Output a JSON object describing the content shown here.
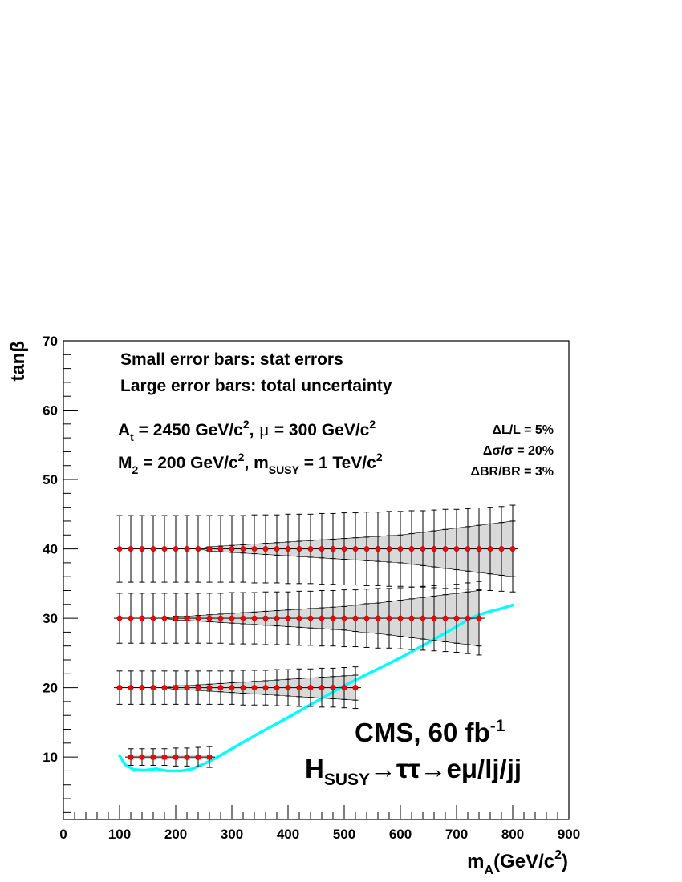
{
  "chart_data": {
    "type": "scatter",
    "xlabel": {
      "main": "m",
      "sub": "A",
      "rest": "(GeV/c",
      "sup": "2",
      "close": ")"
    },
    "ylabel": "tanβ",
    "xlim": [
      0,
      900
    ],
    "ylim": [
      1,
      70
    ],
    "x_ticks": [
      "0",
      "100",
      "200",
      "300",
      "400",
      "500",
      "600",
      "700",
      "800",
      "900"
    ],
    "y_ticks": [
      "10",
      "20",
      "30",
      "40",
      "50",
      "60",
      "70"
    ],
    "x_tick_values": [
      0,
      100,
      200,
      300,
      400,
      500,
      600,
      700,
      800,
      900
    ],
    "y_tick_values": [
      10,
      20,
      30,
      40,
      50,
      60,
      70
    ],
    "series": [
      {
        "tanb": 40,
        "x": [
          100,
          120,
          140,
          160,
          180,
          200,
          220,
          240,
          260,
          280,
          300,
          320,
          340,
          360,
          380,
          400,
          420,
          440,
          460,
          480,
          500,
          520,
          540,
          560,
          580,
          600,
          620,
          640,
          660,
          680,
          700,
          720,
          740,
          760,
          780,
          800
        ],
        "stat_lo": [
          40,
          40,
          40,
          40,
          40,
          40,
          40,
          40,
          39.7,
          39.6,
          39.5,
          39.4,
          39.3,
          39.2,
          39.1,
          39.0,
          38.9,
          38.8,
          38.7,
          38.6,
          38.5,
          38.4,
          38.3,
          38.2,
          38.1,
          38.0,
          37.8,
          37.6,
          37.4,
          37.2,
          37.0,
          36.8,
          36.6,
          36.4,
          36.2,
          36.0
        ],
        "stat_hi": [
          40,
          40,
          40,
          40,
          40,
          40,
          40,
          40,
          40.3,
          40.4,
          40.5,
          40.6,
          40.7,
          40.8,
          40.9,
          41.0,
          41.1,
          41.2,
          41.3,
          41.4,
          41.5,
          41.6,
          41.7,
          41.8,
          41.9,
          42.0,
          42.2,
          42.4,
          42.6,
          42.8,
          43.0,
          43.2,
          43.4,
          43.6,
          43.8,
          44.0
        ],
        "tot_lo": [
          35.2,
          35.2,
          35.2,
          35.2,
          35.2,
          35.2,
          35.2,
          35.2,
          35.2,
          35.2,
          35.2,
          35.2,
          35.1,
          35.1,
          35.1,
          35.0,
          35.0,
          35.0,
          34.9,
          34.9,
          34.8,
          34.8,
          34.7,
          34.7,
          34.6,
          34.6,
          34.5,
          34.5,
          34.4,
          34.3,
          34.3,
          34.2,
          34.1,
          34.0,
          33.9,
          33.8
        ],
        "tot_hi": [
          44.8,
          44.8,
          44.8,
          44.8,
          44.8,
          44.8,
          44.8,
          44.8,
          44.8,
          44.8,
          44.8,
          44.8,
          44.9,
          44.9,
          44.9,
          45.0,
          45.0,
          45.0,
          45.1,
          45.1,
          45.2,
          45.2,
          45.3,
          45.3,
          45.4,
          45.4,
          45.5,
          45.5,
          45.6,
          45.7,
          45.7,
          45.8,
          45.9,
          46.0,
          46.1,
          46.3
        ]
      },
      {
        "tanb": 30,
        "x": [
          100,
          120,
          140,
          160,
          180,
          200,
          220,
          240,
          260,
          280,
          300,
          320,
          340,
          360,
          380,
          400,
          420,
          440,
          460,
          480,
          500,
          520,
          540,
          560,
          580,
          600,
          620,
          640,
          660,
          680,
          700,
          720,
          740
        ],
        "stat_lo": [
          30,
          30,
          30,
          30,
          30,
          29.7,
          29.7,
          29.6,
          29.5,
          29.4,
          29.3,
          29.2,
          29.1,
          29.0,
          28.9,
          28.8,
          28.7,
          28.6,
          28.5,
          28.4,
          28.3,
          28.1,
          27.9,
          27.8,
          27.6,
          27.4,
          27.2,
          27.0,
          26.8,
          26.6,
          26.4,
          26.2,
          26.0
        ],
        "stat_hi": [
          30,
          30,
          30,
          30,
          30,
          30.3,
          30.3,
          30.4,
          30.5,
          30.6,
          30.7,
          30.8,
          30.9,
          31.0,
          31.1,
          31.2,
          31.3,
          31.4,
          31.5,
          31.6,
          31.7,
          31.9,
          32.1,
          32.2,
          32.4,
          32.6,
          32.8,
          33.0,
          33.2,
          33.4,
          33.6,
          33.8,
          34.0
        ],
        "tot_lo": [
          26.4,
          26.4,
          26.4,
          26.4,
          26.4,
          26.4,
          26.4,
          26.4,
          26.4,
          26.4,
          26.3,
          26.3,
          26.3,
          26.2,
          26.2,
          26.2,
          26.1,
          26.1,
          26.0,
          26.0,
          25.9,
          25.9,
          25.8,
          25.7,
          25.7,
          25.6,
          25.5,
          25.4,
          25.3,
          25.2,
          25.1,
          24.9,
          24.7
        ],
        "tot_hi": [
          33.6,
          33.6,
          33.6,
          33.6,
          33.6,
          33.6,
          33.6,
          33.6,
          33.6,
          33.6,
          33.7,
          33.7,
          33.7,
          33.8,
          33.8,
          33.8,
          33.9,
          33.9,
          34.0,
          34.0,
          34.1,
          34.1,
          34.2,
          34.3,
          34.3,
          34.4,
          34.5,
          34.6,
          34.7,
          34.8,
          34.9,
          35.1,
          35.3
        ]
      },
      {
        "tanb": 20,
        "x": [
          100,
          120,
          140,
          160,
          180,
          200,
          220,
          240,
          260,
          280,
          300,
          320,
          340,
          360,
          380,
          400,
          420,
          440,
          460,
          480,
          500,
          520
        ],
        "stat_lo": [
          20,
          20,
          20,
          20,
          20,
          19.7,
          19.7,
          19.6,
          19.5,
          19.4,
          19.3,
          19.2,
          19.1,
          19.0,
          18.9,
          18.8,
          18.7,
          18.6,
          18.5,
          18.4,
          18.3,
          18.2
        ],
        "stat_hi": [
          20,
          20,
          20,
          20,
          20,
          20.3,
          20.3,
          20.4,
          20.5,
          20.6,
          20.7,
          20.8,
          20.9,
          21.0,
          21.1,
          21.2,
          21.3,
          21.4,
          21.5,
          21.6,
          21.7,
          21.8
        ],
        "tot_lo": [
          17.6,
          17.6,
          17.6,
          17.6,
          17.6,
          17.6,
          17.6,
          17.6,
          17.6,
          17.6,
          17.6,
          17.5,
          17.5,
          17.5,
          17.4,
          17.4,
          17.3,
          17.3,
          17.2,
          17.2,
          17.1,
          17.0
        ],
        "tot_hi": [
          22.4,
          22.4,
          22.4,
          22.4,
          22.4,
          22.4,
          22.4,
          22.4,
          22.4,
          22.4,
          22.4,
          22.5,
          22.5,
          22.5,
          22.6,
          22.6,
          22.7,
          22.7,
          22.8,
          22.8,
          22.9,
          23.0
        ]
      },
      {
        "tanb": 10,
        "x": [
          120,
          140,
          160,
          180,
          200,
          220,
          240,
          260
        ],
        "stat_lo": [
          9.7,
          9.7,
          9.7,
          9.7,
          9.7,
          9.7,
          9.7,
          9.7
        ],
        "stat_hi": [
          10.3,
          10.3,
          10.3,
          10.3,
          10.3,
          10.3,
          10.3,
          10.3
        ],
        "tot_lo": [
          8.8,
          8.8,
          8.8,
          8.8,
          8.7,
          8.7,
          8.6,
          8.5
        ],
        "tot_hi": [
          11.2,
          11.2,
          11.2,
          11.2,
          11.3,
          11.3,
          11.4,
          11.5
        ]
      }
    ],
    "curve": {
      "color": "#00ffff",
      "x": [
        100,
        110,
        125,
        145,
        165,
        185,
        210,
        230,
        250,
        270,
        300,
        350,
        400,
        450,
        500,
        550,
        600,
        650,
        700,
        720,
        740,
        760,
        780,
        800
      ],
      "y": [
        10.2,
        8.9,
        8.2,
        8.1,
        8.3,
        8.0,
        8.0,
        8.3,
        9.0,
        9.8,
        11.2,
        13.5,
        15.7,
        18.0,
        20.3,
        22.3,
        24.3,
        26.5,
        28.8,
        29.8,
        30.5,
        31.0,
        31.4,
        31.9
      ]
    },
    "marker_color": "#ff0000",
    "band_color": "#d9d9d9"
  },
  "annotations": {
    "line1": "Small error bars: stat errors",
    "line2": "Large error bars: total uncertainty",
    "params1": {
      "a": "A",
      "a_sub": "t",
      "a_rest": " = 2450 GeV/c",
      "a_sup": "2",
      "mid": ", ",
      "mu": "μ",
      "mu_rest": " = 300 GeV/c",
      "mu_sup": "2"
    },
    "params2": {
      "m": "M",
      "m_sub": "2",
      "m_rest": " = 200 GeV/c",
      "m_sup": "2",
      "mid": ", m",
      "s_sub": "SUSY",
      "s_rest": " = 1 TeV/c",
      "s_sup": "2"
    },
    "syst1": "ΔL/L = 5%",
    "syst2": "Δσ/σ = 20%",
    "syst3": "ΔBR/BR = 3%",
    "cms": {
      "text": "CMS, 60 fb",
      "sup": "-1"
    },
    "channel": {
      "h": "H",
      "sub": "SUSY",
      "rest": "→ττ→eμ/lj/jj"
    }
  }
}
